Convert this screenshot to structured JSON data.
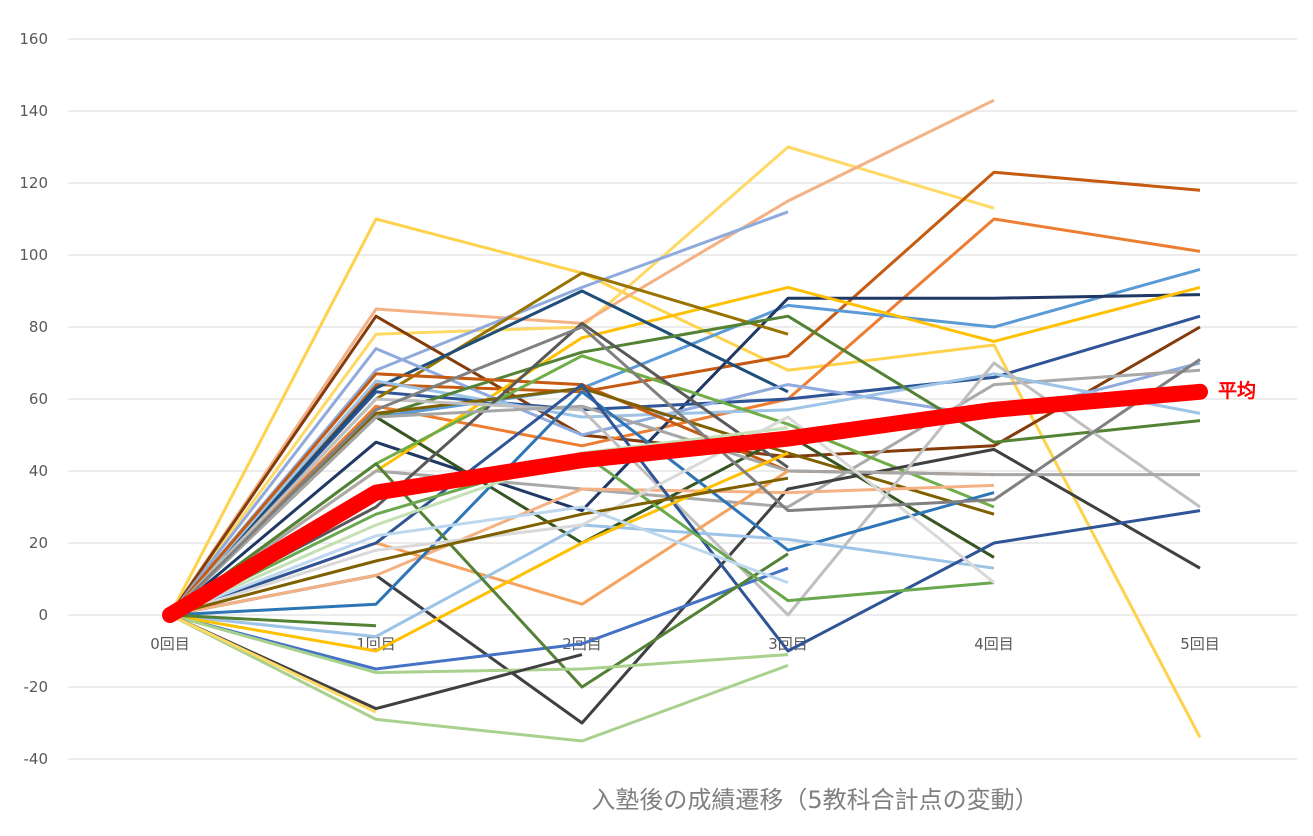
{
  "chart_data": {
    "type": "line",
    "title": "入塾後の成績遷移（5教科合計点の変動）",
    "xlabel": "",
    "ylabel": "",
    "categories": [
      "0回目",
      "1回目",
      "2回目",
      "3回目",
      "4回目",
      "5回目"
    ],
    "y_ticks": [
      "160",
      "140",
      "120",
      "100",
      "80",
      "60",
      "40",
      "20",
      "0",
      "-20",
      "-40"
    ],
    "ylim": [
      -40,
      160
    ],
    "y_step": 20,
    "grid": true,
    "legend": "none",
    "average_series": {
      "name": "平均",
      "color": "#ff0000",
      "values": [
        0,
        34,
        43,
        49,
        57,
        62
      ]
    },
    "series": [
      {
        "color": "#ffd24d",
        "values": [
          0,
          110,
          95,
          68,
          75,
          -34
        ]
      },
      {
        "color": "#ffd966",
        "values": [
          0,
          78,
          80,
          130,
          113,
          null
        ]
      },
      {
        "color": "#f4b183",
        "values": [
          0,
          85,
          81,
          115,
          143,
          null
        ]
      },
      {
        "color": "#8faadc",
        "values": [
          0,
          68,
          91,
          112,
          null,
          null
        ]
      },
      {
        "color": "#843c0c",
        "values": [
          0,
          83,
          50,
          44,
          47,
          80
        ]
      },
      {
        "color": "#c55a11",
        "values": [
          0,
          64,
          62,
          72,
          123,
          118
        ]
      },
      {
        "color": "#ed7d31",
        "values": [
          0,
          58,
          47,
          60,
          110,
          101
        ]
      },
      {
        "color": "#5b9bd5",
        "values": [
          0,
          55,
          63,
          86,
          80,
          96
        ]
      },
      {
        "color": "#203864",
        "values": [
          0,
          48,
          29,
          88,
          88,
          89
        ]
      },
      {
        "color": "#ffc000",
        "values": [
          0,
          40,
          77,
          91,
          76,
          91
        ]
      },
      {
        "color": "#2f5597",
        "values": [
          0,
          62,
          57,
          60,
          66,
          83
        ]
      },
      {
        "color": "#997300",
        "values": [
          0,
          60,
          95,
          78,
          null,
          null
        ]
      },
      {
        "color": "#1f4e79",
        "values": [
          0,
          63,
          90,
          62,
          null,
          null
        ]
      },
      {
        "color": "#8faadc",
        "values": [
          0,
          74,
          50,
          64,
          55,
          70
        ]
      },
      {
        "color": "#a9a9a9",
        "values": [
          0,
          40,
          35,
          30,
          64,
          68
        ]
      },
      {
        "color": "#9dc3e6",
        "values": [
          0,
          65,
          55,
          57,
          67,
          56
        ]
      },
      {
        "color": "#548235",
        "values": [
          0,
          55,
          73,
          83,
          48,
          54
        ]
      },
      {
        "color": "#c55a11",
        "values": [
          0,
          67,
          64,
          40,
          39,
          null
        ]
      },
      {
        "color": "#7f6000",
        "values": [
          0,
          56,
          63,
          45,
          28,
          null
        ]
      },
      {
        "color": "#375623",
        "values": [
          0,
          55,
          20,
          50,
          16,
          null
        ]
      },
      {
        "color": "#70ad47",
        "values": [
          0,
          42,
          72,
          53,
          30,
          null
        ]
      },
      {
        "color": "#404040",
        "values": [
          0,
          11,
          -30,
          35,
          46,
          13
        ]
      },
      {
        "color": "#595959",
        "values": [
          0,
          30,
          81,
          41,
          null,
          null
        ]
      },
      {
        "color": "#bfbfbf",
        "values": [
          0,
          60,
          57,
          0,
          70,
          30
        ]
      },
      {
        "color": "#a6a6a6",
        "values": [
          0,
          55,
          58,
          40,
          39,
          39
        ]
      },
      {
        "color": "#f4b183",
        "values": [
          0,
          11,
          35,
          34,
          36,
          null
        ]
      },
      {
        "color": "#f4a460",
        "values": [
          0,
          20,
          3,
          40,
          null,
          null
        ]
      },
      {
        "color": "#2e75b6",
        "values": [
          0,
          3,
          62,
          18,
          34,
          null
        ]
      },
      {
        "color": "#9dc3e6",
        "values": [
          0,
          -6,
          25,
          21,
          13,
          null
        ]
      },
      {
        "color": "#2f5597",
        "values": [
          0,
          20,
          64,
          -10,
          20,
          29
        ]
      },
      {
        "color": "#4472c4",
        "values": [
          0,
          -15,
          -8,
          13,
          null,
          null
        ]
      },
      {
        "color": "#ffc000",
        "values": [
          0,
          -10,
          20,
          45,
          null,
          null
        ]
      },
      {
        "color": "#538135",
        "values": [
          0,
          42,
          -20,
          17,
          null,
          null
        ]
      },
      {
        "color": "#6aa84f",
        "values": [
          0,
          28,
          45,
          4,
          9,
          null
        ]
      },
      {
        "color": "#a9d18e",
        "values": [
          0,
          -16,
          -15,
          -11,
          null,
          null
        ]
      },
      {
        "color": "#a9d18e",
        "values": [
          0,
          -29,
          -35,
          -14,
          null,
          null
        ]
      },
      {
        "color": "#404040",
        "values": [
          0,
          -26,
          -11,
          null,
          null,
          null
        ]
      },
      {
        "color": "#548235",
        "values": [
          0,
          -3,
          null,
          null,
          null,
          null
        ]
      },
      {
        "color": "#ffd966",
        "values": [
          0,
          -27,
          null,
          null,
          null,
          null
        ]
      },
      {
        "color": "#c5e0b4",
        "values": [
          0,
          25,
          45,
          52,
          null,
          null
        ]
      },
      {
        "color": "#d9d9d9",
        "values": [
          0,
          18,
          25,
          55,
          9,
          null
        ]
      },
      {
        "color": "#7f6000",
        "values": [
          0,
          15,
          28,
          38,
          null,
          null
        ]
      },
      {
        "color": "#808080",
        "values": [
          0,
          57,
          80,
          29,
          32,
          71
        ]
      },
      {
        "color": "#bdd7ee",
        "values": [
          0,
          22,
          30,
          9,
          null,
          null
        ]
      }
    ]
  }
}
